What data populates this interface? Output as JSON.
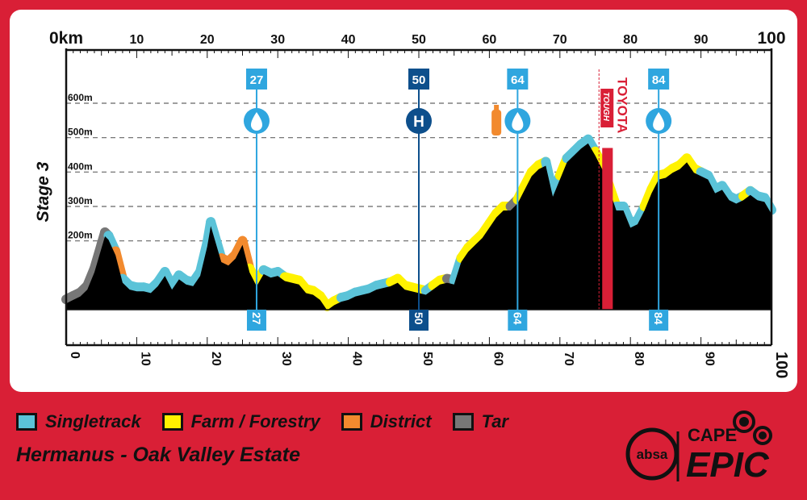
{
  "stage_label": "Stage 3",
  "route_title": "Hermanus - Oak Valley Estate",
  "legend": [
    {
      "label": "Singletrack",
      "color": "#5bc3d8"
    },
    {
      "label": "Farm / Forestry",
      "color": "#fff200"
    },
    {
      "label": "District",
      "color": "#f28a2e"
    },
    {
      "label": "Tar",
      "color": "#777777"
    }
  ],
  "brand": {
    "absa": "absa",
    "cape": "CAPE",
    "epic": "EPIC",
    "sponsor": "TOYOTA",
    "sponsor_sub": "TOUGH"
  },
  "colors": {
    "background": "#d91f36",
    "profile": "#000000",
    "waypoint": "#2fa6df",
    "hospital": "#0d4f8c",
    "bottle": "#f28a2e"
  },
  "chart_data": {
    "type": "area",
    "xlabel": "",
    "ylabel": "",
    "xlim": [
      0,
      100
    ],
    "ylim": [
      0,
      600
    ],
    "x_ticks_top": [
      "0km",
      "10",
      "20",
      "30",
      "40",
      "50",
      "60",
      "70",
      "80",
      "90",
      "100"
    ],
    "x_ticks_bottom": [
      "0",
      "10",
      "20",
      "30",
      "40",
      "50",
      "60",
      "70",
      "80",
      "90",
      "100"
    ],
    "y_ticks": [
      "200m",
      "300m",
      "400m",
      "500m",
      "600m"
    ],
    "y_tick_values": [
      200,
      300,
      400,
      500,
      600
    ],
    "grid": "horizontal dashed",
    "series": [
      {
        "x": [
          0,
          1,
          2,
          3,
          4,
          5,
          5.5,
          6,
          7,
          8,
          9,
          10,
          11,
          12,
          13,
          14,
          15,
          16,
          17,
          18,
          19,
          20,
          20.5,
          21,
          22,
          23,
          24,
          25,
          26,
          27,
          28,
          29,
          30,
          31,
          32,
          33,
          34,
          35,
          36,
          37,
          38,
          39,
          40,
          41,
          42,
          43,
          44,
          45,
          46,
          47,
          48,
          49,
          50,
          51,
          52,
          53,
          54,
          55,
          56,
          57,
          58,
          59,
          60,
          61,
          62,
          63,
          64,
          65,
          66,
          67,
          68,
          69,
          70,
          71,
          72,
          73,
          74,
          75,
          76,
          77,
          78,
          79,
          80,
          81,
          82,
          83,
          84,
          85,
          86,
          87,
          88,
          89,
          90,
          91,
          92,
          93,
          94,
          95,
          96,
          97,
          98,
          99,
          100
        ],
        "y": [
          30,
          40,
          50,
          70,
          120,
          190,
          225,
          215,
          170,
          90,
          70,
          65,
          65,
          60,
          80,
          110,
          70,
          100,
          85,
          80,
          110,
          195,
          255,
          220,
          150,
          140,
          160,
          200,
          120,
          80,
          115,
          105,
          110,
          95,
          90,
          85,
          60,
          55,
          40,
          10,
          25,
          35,
          40,
          50,
          55,
          60,
          70,
          75,
          80,
          90,
          70,
          65,
          60,
          55,
          70,
          85,
          90,
          85,
          150,
          180,
          200,
          220,
          250,
          280,
          300,
          300,
          320,
          360,
          400,
          420,
          430,
          340,
          390,
          440,
          460,
          480,
          495,
          460,
          420,
          360,
          300,
          300,
          250,
          260,
          300,
          350,
          390,
          395,
          410,
          420,
          440,
          410,
          400,
          390,
          350,
          360,
          330,
          320,
          330,
          345,
          330,
          325,
          290
        ],
        "surface": [
          "tar",
          "tar",
          "tar",
          "tar",
          "tar",
          "tar",
          "tar",
          "singletrack",
          "district",
          "singletrack",
          "singletrack",
          "singletrack",
          "singletrack",
          "singletrack",
          "singletrack",
          "singletrack",
          "singletrack",
          "singletrack",
          "singletrack",
          "singletrack",
          "singletrack",
          "singletrack",
          "singletrack",
          "singletrack",
          "district",
          "district",
          "district",
          "district",
          "farm",
          "farm",
          "singletrack",
          "singletrack",
          "singletrack",
          "farm",
          "farm",
          "farm",
          "farm",
          "farm",
          "farm",
          "farm",
          "farm",
          "singletrack",
          "singletrack",
          "singletrack",
          "singletrack",
          "singletrack",
          "singletrack",
          "singletrack",
          "farm",
          "farm",
          "farm",
          "farm",
          "farm",
          "singletrack",
          "farm",
          "farm",
          "tar",
          "singletrack",
          "farm",
          "farm",
          "farm",
          "farm",
          "farm",
          "farm",
          "farm",
          "tar",
          "farm",
          "farm",
          "farm",
          "farm",
          "singletrack",
          "singletrack",
          "farm",
          "singletrack",
          "singletrack",
          "singletrack",
          "singletrack",
          "farm",
          "farm",
          "farm",
          "singletrack",
          "singletrack",
          "singletrack",
          "singletrack",
          "farm",
          "farm",
          "farm",
          "farm",
          "farm",
          "farm",
          "farm",
          "farm",
          "singletrack",
          "singletrack",
          "singletrack",
          "singletrack",
          "singletrack",
          "singletrack",
          "farm",
          "singletrack",
          "singletrack",
          "singletrack",
          "singletrack"
        ]
      }
    ],
    "markers": [
      {
        "km": 27,
        "label": "27",
        "icon": "water"
      },
      {
        "km": 50,
        "label": "50",
        "icon": "hospital"
      },
      {
        "km": 64,
        "label": "64",
        "icon": "water"
      },
      {
        "km": 84,
        "label": "84",
        "icon": "water"
      }
    ],
    "bottle_km": 61,
    "climb_zone": {
      "start_km": 76,
      "end_km": 77.5
    }
  }
}
